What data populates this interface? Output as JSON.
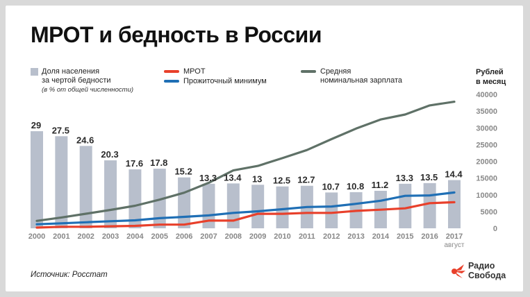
{
  "title": "МРОТ и бедность в России",
  "legend": {
    "bars_label_line1": "Доля населения",
    "bars_label_line2": "за чертой бедности",
    "bars_note": "(в % от общей численности)",
    "mrot_label": "МРОТ",
    "subsistence_label": "Прожиточный минимум",
    "salary_label_line1": "Средняя",
    "salary_label_line2": "номинальная зарплата"
  },
  "unit_label_line1": "Рублей",
  "unit_label_line2": "в месяц",
  "source": "Источник: Росстат",
  "brand": {
    "line1": "Радио",
    "line2": "Свобода"
  },
  "colors": {
    "bars": "#b8bfcc",
    "mrot": "#e8402b",
    "subsistence": "#1f6fb5",
    "salary": "#5f7167",
    "bar_labels": "#2a2a2a",
    "ticks": "#888888"
  },
  "chart_data": {
    "type": "bar+line",
    "categories": [
      "2000",
      "2001",
      "2002",
      "2003",
      "2004",
      "2005",
      "2006",
      "2007",
      "2008",
      "2009",
      "2010",
      "2011",
      "2012",
      "2013",
      "2014",
      "2015",
      "2016",
      "2017"
    ],
    "x_sublabel_last": "август",
    "poverty_pct": [
      29,
      27.5,
      24.6,
      20.3,
      17.6,
      17.8,
      15.2,
      13.3,
      13.4,
      13,
      12.5,
      12.7,
      10.7,
      10.8,
      11.2,
      13.3,
      13.5,
      14.4
    ],
    "poverty_labels": [
      "29",
      "27.5",
      "24.6",
      "20.3",
      "17.6",
      "17.8",
      "15.2",
      "13.3",
      "13.4",
      "13",
      "12.5",
      "12.7",
      "10.7",
      "10.8",
      "11.2",
      "13.3",
      "13.5",
      "14.4"
    ],
    "series": [
      {
        "name": "МРОТ",
        "key": "mrot",
        "values": [
          200,
          450,
          450,
          600,
          720,
          1100,
          1100,
          2300,
          2300,
          4330,
          4330,
          4611,
          4611,
          5205,
          5554,
          5965,
          7500,
          7800
        ]
      },
      {
        "name": "Прожиточный минимум",
        "key": "subsistence",
        "values": [
          1210,
          1500,
          1810,
          2110,
          2380,
          3020,
          3420,
          3850,
          4600,
          5080,
          5690,
          6370,
          6510,
          7310,
          8230,
          9700,
          9830,
          10700
        ]
      },
      {
        "name": "Средняя номинальная зарплата",
        "key": "salary",
        "values": [
          2220,
          3240,
          4360,
          5500,
          6740,
          8550,
          10630,
          13590,
          17290,
          18640,
          20950,
          23370,
          26630,
          29790,
          32500,
          34000,
          36700,
          37800
        ]
      }
    ],
    "right_axis": {
      "ticks": [
        "0",
        "5000",
        "10000",
        "15000",
        "20000",
        "25000",
        "30000",
        "35000",
        "40000"
      ],
      "min": 0,
      "max": 40000
    },
    "left_axis_pct_max": 40
  }
}
